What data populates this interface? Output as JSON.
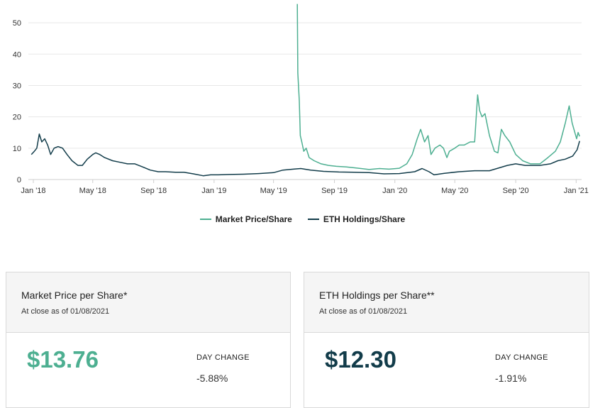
{
  "chart_data": {
    "type": "line",
    "ylim": [
      0,
      55
    ],
    "yticks": [
      0,
      10,
      20,
      30,
      40,
      50
    ],
    "xlim": [
      "2017-12-22",
      "2021-01-12"
    ],
    "xticks": [
      {
        "date": "2018-01-01",
        "label": "Jan '18"
      },
      {
        "date": "2018-05-01",
        "label": "May '18"
      },
      {
        "date": "2018-09-01",
        "label": "Sep '18"
      },
      {
        "date": "2019-01-01",
        "label": "Jan '19"
      },
      {
        "date": "2019-05-01",
        "label": "May '19"
      },
      {
        "date": "2019-09-01",
        "label": "Sep '19"
      },
      {
        "date": "2020-01-01",
        "label": "Jan '20"
      },
      {
        "date": "2020-05-01",
        "label": "May '20"
      },
      {
        "date": "2020-09-01",
        "label": "Sep '20"
      },
      {
        "date": "2021-01-01",
        "label": "Jan '21"
      }
    ],
    "grid": true,
    "legend_position": "bottom-center",
    "series": [
      {
        "name": "Market Price/Share",
        "color": "#4daf91",
        "points": [
          [
            "2019-06-18",
            56
          ],
          [
            "2019-06-19",
            34
          ],
          [
            "2019-06-22",
            25
          ],
          [
            "2019-06-24",
            14
          ],
          [
            "2019-06-27",
            12
          ],
          [
            "2019-07-01",
            9
          ],
          [
            "2019-07-06",
            10
          ],
          [
            "2019-07-12",
            7
          ],
          [
            "2019-07-22",
            6
          ],
          [
            "2019-08-05",
            5
          ],
          [
            "2019-08-20",
            4.5
          ],
          [
            "2019-09-05",
            4.2
          ],
          [
            "2019-09-25",
            4
          ],
          [
            "2019-10-20",
            3.6
          ],
          [
            "2019-11-10",
            3.2
          ],
          [
            "2019-12-01",
            3.5
          ],
          [
            "2019-12-20",
            3.3
          ],
          [
            "2020-01-10",
            3.6
          ],
          [
            "2020-01-25",
            5
          ],
          [
            "2020-02-05",
            8
          ],
          [
            "2020-02-15",
            13
          ],
          [
            "2020-02-22",
            16
          ],
          [
            "2020-03-01",
            12
          ],
          [
            "2020-03-08",
            14
          ],
          [
            "2020-03-14",
            8
          ],
          [
            "2020-03-22",
            10
          ],
          [
            "2020-04-01",
            11
          ],
          [
            "2020-04-08",
            10
          ],
          [
            "2020-04-15",
            7
          ],
          [
            "2020-04-20",
            9
          ],
          [
            "2020-05-01",
            10
          ],
          [
            "2020-05-10",
            11
          ],
          [
            "2020-05-20",
            11
          ],
          [
            "2020-06-01",
            12
          ],
          [
            "2020-06-10",
            12
          ],
          [
            "2020-06-16",
            27
          ],
          [
            "2020-06-20",
            22
          ],
          [
            "2020-06-25",
            20
          ],
          [
            "2020-07-01",
            21
          ],
          [
            "2020-07-10",
            14
          ],
          [
            "2020-07-20",
            9
          ],
          [
            "2020-07-27",
            8.5
          ],
          [
            "2020-08-03",
            16
          ],
          [
            "2020-08-10",
            14
          ],
          [
            "2020-08-20",
            12
          ],
          [
            "2020-09-01",
            8
          ],
          [
            "2020-09-15",
            6
          ],
          [
            "2020-10-01",
            5
          ],
          [
            "2020-10-20",
            5
          ],
          [
            "2020-11-05",
            7
          ],
          [
            "2020-11-20",
            9
          ],
          [
            "2020-11-30",
            12
          ],
          [
            "2020-12-10",
            18
          ],
          [
            "2020-12-18",
            23.5
          ],
          [
            "2020-12-24",
            18
          ],
          [
            "2021-01-02",
            13
          ],
          [
            "2021-01-05",
            15
          ],
          [
            "2021-01-08",
            13.76
          ]
        ]
      },
      {
        "name": "ETH Holdings/Share",
        "color": "#123c4a",
        "points": [
          [
            "2017-12-28",
            8
          ],
          [
            "2018-01-03",
            9
          ],
          [
            "2018-01-08",
            10
          ],
          [
            "2018-01-13",
            14.5
          ],
          [
            "2018-01-18",
            12
          ],
          [
            "2018-01-24",
            13
          ],
          [
            "2018-01-30",
            11
          ],
          [
            "2018-02-05",
            8
          ],
          [
            "2018-02-12",
            10
          ],
          [
            "2018-02-20",
            10.5
          ],
          [
            "2018-03-01",
            10
          ],
          [
            "2018-03-10",
            8
          ],
          [
            "2018-03-20",
            6
          ],
          [
            "2018-04-01",
            4.5
          ],
          [
            "2018-04-10",
            4.5
          ],
          [
            "2018-04-20",
            6.5
          ],
          [
            "2018-05-01",
            8
          ],
          [
            "2018-05-07",
            8.5
          ],
          [
            "2018-05-15",
            8
          ],
          [
            "2018-05-25",
            7
          ],
          [
            "2018-06-10",
            6
          ],
          [
            "2018-06-25",
            5.5
          ],
          [
            "2018-07-10",
            5
          ],
          [
            "2018-07-25",
            5
          ],
          [
            "2018-08-10",
            4
          ],
          [
            "2018-08-25",
            3
          ],
          [
            "2018-09-10",
            2.5
          ],
          [
            "2018-09-25",
            2.5
          ],
          [
            "2018-10-15",
            2.3
          ],
          [
            "2018-11-01",
            2.3
          ],
          [
            "2018-11-20",
            1.8
          ],
          [
            "2018-12-10",
            1.2
          ],
          [
            "2018-12-25",
            1.5
          ],
          [
            "2019-01-10",
            1.5
          ],
          [
            "2019-02-01",
            1.6
          ],
          [
            "2019-03-01",
            1.7
          ],
          [
            "2019-04-01",
            1.9
          ],
          [
            "2019-05-01",
            2.2
          ],
          [
            "2019-05-20",
            3
          ],
          [
            "2019-06-10",
            3.3
          ],
          [
            "2019-06-25",
            3.5
          ],
          [
            "2019-07-15",
            3
          ],
          [
            "2019-08-10",
            2.6
          ],
          [
            "2019-09-10",
            2.4
          ],
          [
            "2019-10-10",
            2.3
          ],
          [
            "2019-11-10",
            2.2
          ],
          [
            "2019-12-10",
            1.8
          ],
          [
            "2020-01-10",
            1.9
          ],
          [
            "2020-02-10",
            2.5
          ],
          [
            "2020-02-25",
            3.5
          ],
          [
            "2020-03-10",
            2.5
          ],
          [
            "2020-03-20",
            1.5
          ],
          [
            "2020-04-10",
            2
          ],
          [
            "2020-05-10",
            2.5
          ],
          [
            "2020-06-10",
            2.8
          ],
          [
            "2020-07-10",
            2.8
          ],
          [
            "2020-07-25",
            3.5
          ],
          [
            "2020-08-15",
            4.5
          ],
          [
            "2020-09-01",
            5
          ],
          [
            "2020-09-20",
            4.5
          ],
          [
            "2020-10-20",
            4.5
          ],
          [
            "2020-11-10",
            5
          ],
          [
            "2020-11-25",
            6
          ],
          [
            "2020-12-10",
            6.5
          ],
          [
            "2020-12-25",
            7.5
          ],
          [
            "2021-01-03",
            9.5
          ],
          [
            "2021-01-08",
            12.3
          ]
        ]
      }
    ]
  },
  "cards": [
    {
      "title": "Market Price per Share*",
      "subtitle": "At close as of 01/08/2021",
      "value": "$13.76",
      "value_color": "#4daf91",
      "day_change_label": "DAY CHANGE",
      "day_change": "-5.88%"
    },
    {
      "title": "ETH Holdings per Share**",
      "subtitle": "At close as of 01/08/2021",
      "value": "$12.30",
      "value_color": "#123c4a",
      "day_change_label": "DAY CHANGE",
      "day_change": "-1.91%"
    }
  ]
}
